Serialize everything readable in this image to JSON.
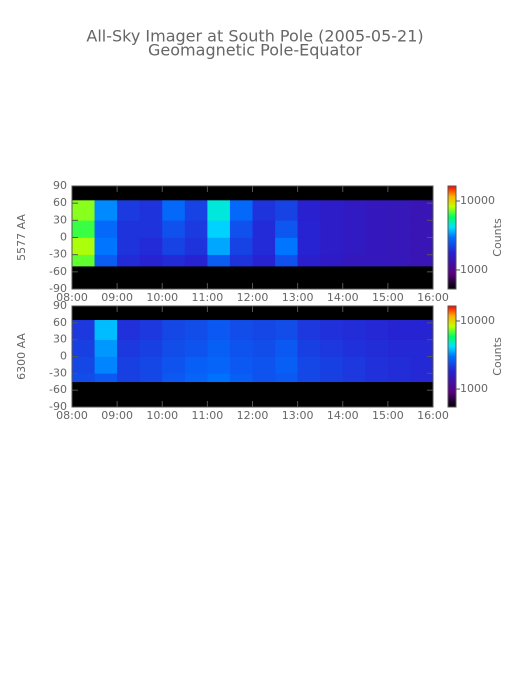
{
  "chart_data": [
    {
      "type": "heatmap",
      "title": "All-Sky Imager at South Pole (2005-05-21)",
      "subtitle": "Geomagnetic Pole-Equator",
      "ylabel": "5577 AA",
      "xlim": [
        8,
        16
      ],
      "xticks": [
        {
          "value": 8,
          "label": "08:00"
        },
        {
          "value": 9,
          "label": "09:00"
        },
        {
          "value": 10,
          "label": "10:00"
        },
        {
          "value": 11,
          "label": "11:00"
        },
        {
          "value": 12,
          "label": "12:00"
        },
        {
          "value": 13,
          "label": "13:00"
        },
        {
          "value": 14,
          "label": "14:00"
        },
        {
          "value": 15,
          "label": "15:00"
        },
        {
          "value": 16,
          "label": "16:00"
        }
      ],
      "ylim": [
        -90,
        90
      ],
      "yticks": [
        90,
        60,
        30,
        0,
        -30,
        -60,
        -90
      ],
      "xbins": [
        8,
        8.5,
        9,
        9.5,
        10,
        10.5,
        11,
        11.5,
        12,
        12.5,
        13,
        13.5,
        14,
        14.5,
        15,
        15.5,
        16
      ],
      "ybins": [
        -90,
        -50,
        -30,
        0,
        30,
        65,
        90
      ],
      "z": [
        [
          null,
          null,
          null,
          null,
          null,
          null,
          null,
          null,
          null,
          null,
          null,
          null,
          null,
          null,
          null,
          null
        ],
        [
          7000,
          2600,
          1900,
          1800,
          1900,
          1800,
          2600,
          2000,
          1800,
          2400,
          1700,
          1600,
          1500,
          1500,
          1450,
          1400
        ],
        [
          8000,
          3000,
          2000,
          1900,
          2200,
          2000,
          3500,
          2200,
          1900,
          3000,
          1800,
          1650,
          1550,
          1500,
          1450,
          1400
        ],
        [
          6500,
          2800,
          2000,
          2000,
          2400,
          2100,
          4000,
          2400,
          1900,
          2500,
          1800,
          1650,
          1550,
          1500,
          1450,
          1400
        ],
        [
          7500,
          3200,
          2100,
          2000,
          2800,
          2200,
          4500,
          2800,
          2000,
          2200,
          1750,
          1650,
          1550,
          1500,
          1450,
          1400
        ],
        [
          null,
          null,
          null,
          null,
          null,
          null,
          null,
          null,
          null,
          null,
          null,
          null,
          null,
          null,
          null,
          null
        ]
      ],
      "clim": [
        530,
        16500
      ],
      "clog": true,
      "cticks": [
        1000,
        10000
      ],
      "clabel": "Counts"
    },
    {
      "type": "heatmap",
      "ylabel": "6300 AA",
      "xlim": [
        8,
        16
      ],
      "xticks": [
        {
          "value": 8,
          "label": "08:00"
        },
        {
          "value": 9,
          "label": "09:00"
        },
        {
          "value": 10,
          "label": "10:00"
        },
        {
          "value": 11,
          "label": "11:00"
        },
        {
          "value": 12,
          "label": "12:00"
        },
        {
          "value": 13,
          "label": "13:00"
        },
        {
          "value": 14,
          "label": "14:00"
        },
        {
          "value": 15,
          "label": "15:00"
        },
        {
          "value": 16,
          "label": "16:00"
        }
      ],
      "ylim": [
        -90,
        90
      ],
      "yticks": [
        90,
        60,
        30,
        0,
        -30,
        -60,
        -90
      ],
      "xbins": [
        8,
        8.5,
        9,
        9.5,
        10,
        10.5,
        11,
        11.5,
        12,
        12.5,
        13,
        13.5,
        14,
        14.5,
        15,
        15.5,
        16
      ],
      "ybins": [
        -90,
        -45,
        -30,
        0,
        30,
        65,
        90
      ],
      "z": [
        [
          null,
          null,
          null,
          null,
          null,
          null,
          null,
          null,
          null,
          null,
          null,
          null,
          null,
          null,
          null,
          null
        ],
        [
          2400,
          2600,
          2200,
          2300,
          2600,
          2800,
          3000,
          2700,
          2500,
          2600,
          2300,
          2200,
          2100,
          2000,
          1950,
          1900
        ],
        [
          2300,
          3200,
          2200,
          2300,
          2500,
          2700,
          2800,
          2600,
          2500,
          2700,
          2300,
          2200,
          2100,
          2000,
          1950,
          1900
        ],
        [
          2200,
          3400,
          2100,
          2200,
          2400,
          2500,
          2700,
          2500,
          2400,
          2600,
          2200,
          2100,
          2000,
          1950,
          1900,
          1900
        ],
        [
          2100,
          3800,
          2000,
          2100,
          2300,
          2400,
          2600,
          2400,
          2300,
          2400,
          2100,
          2000,
          1950,
          1900,
          1850,
          1850
        ],
        [
          null,
          null,
          null,
          null,
          null,
          null,
          null,
          null,
          null,
          null,
          null,
          null,
          null,
          null,
          null,
          null
        ]
      ],
      "clim": [
        545,
        16600
      ],
      "clog": true,
      "cticks": [
        1000,
        10000
      ],
      "clabel": "Counts"
    }
  ]
}
